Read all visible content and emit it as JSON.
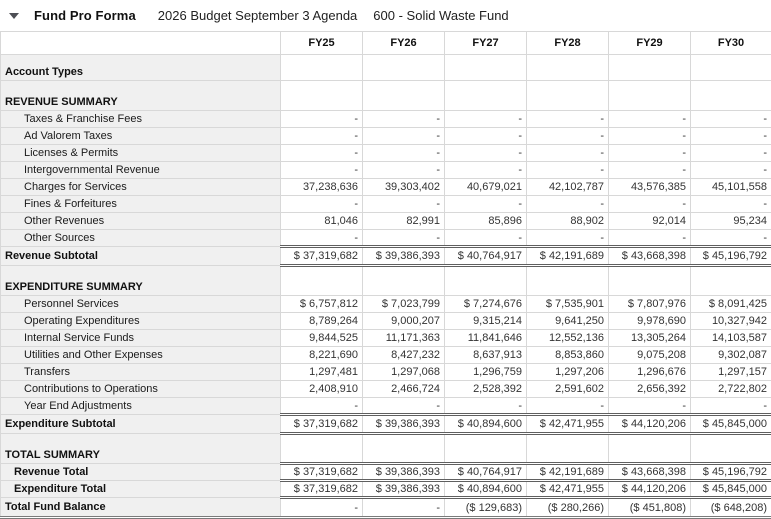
{
  "header": {
    "title": "Fund Pro Forma",
    "subtitle": "2026 Budget September 3 Agenda",
    "fund": "600 - Solid Waste Fund",
    "collapse_icon": "caret-down-icon"
  },
  "colors": {
    "row_label_bg": "#f0f0f0",
    "grid_line": "#d8d8d8",
    "outer_border": "#9e9e9e",
    "accounting_rule": "#5f5f5f",
    "text": "#1a1a1a"
  },
  "table": {
    "columns": [
      "FY25",
      "FY26",
      "FY27",
      "FY28",
      "FY29",
      "FY30"
    ],
    "rows": [
      {
        "type": "spacer",
        "label": "",
        "values": [
          "",
          "",
          "",
          "",
          "",
          ""
        ]
      },
      {
        "type": "acct",
        "label": "Account Types",
        "values": [
          "",
          "",
          "",
          "",
          "",
          ""
        ]
      },
      {
        "type": "spacer",
        "label": "",
        "values": [
          "",
          "",
          "",
          "",
          "",
          ""
        ]
      },
      {
        "type": "section",
        "label": "REVENUE SUMMARY",
        "values": [
          "",
          "",
          "",
          "",
          "",
          ""
        ]
      },
      {
        "type": "item",
        "label": "Taxes & Franchise Fees",
        "values": [
          "-",
          "-",
          "-",
          "-",
          "-",
          "-"
        ]
      },
      {
        "type": "item",
        "label": "Ad Valorem Taxes",
        "values": [
          "-",
          "-",
          "-",
          "-",
          "-",
          "-"
        ]
      },
      {
        "type": "item",
        "label": "Licenses & Permits",
        "values": [
          "-",
          "-",
          "-",
          "-",
          "-",
          "-"
        ]
      },
      {
        "type": "item",
        "label": "Intergovernmental Revenue",
        "values": [
          "-",
          "-",
          "-",
          "-",
          "-",
          "-"
        ]
      },
      {
        "type": "item",
        "label": "Charges for Services",
        "values": [
          "37,238,636",
          "39,303,402",
          "40,679,021",
          "42,102,787",
          "43,576,385",
          "45,101,558"
        ]
      },
      {
        "type": "item",
        "label": "Fines & Forfeitures",
        "values": [
          "-",
          "-",
          "-",
          "-",
          "-",
          "-"
        ]
      },
      {
        "type": "item",
        "label": "Other Revenues",
        "values": [
          "81,046",
          "82,991",
          "85,896",
          "88,902",
          "92,014",
          "95,234"
        ]
      },
      {
        "type": "item",
        "label": "Other Sources",
        "values": [
          "-",
          "-",
          "-",
          "-",
          "-",
          "-"
        ]
      },
      {
        "type": "sub",
        "label": "Revenue Subtotal",
        "values": [
          "$ 37,319,682",
          "$ 39,386,393",
          "$ 40,764,917",
          "$ 42,191,689",
          "$ 43,668,398",
          "$ 45,196,792"
        ]
      },
      {
        "type": "spacer",
        "label": "",
        "values": [
          "",
          "",
          "",
          "",
          "",
          ""
        ]
      },
      {
        "type": "section",
        "label": "EXPENDITURE SUMMARY",
        "values": [
          "",
          "",
          "",
          "",
          "",
          ""
        ]
      },
      {
        "type": "item",
        "label": "Personnel Services",
        "values": [
          "$ 6,757,812",
          "$ 7,023,799",
          "$ 7,274,676",
          "$ 7,535,901",
          "$ 7,807,976",
          "$ 8,091,425"
        ]
      },
      {
        "type": "item",
        "label": "Operating Expenditures",
        "values": [
          "8,789,264",
          "9,000,207",
          "9,315,214",
          "9,641,250",
          "9,978,690",
          "10,327,942"
        ]
      },
      {
        "type": "item",
        "label": "Internal Service Funds",
        "values": [
          "9,844,525",
          "11,171,363",
          "11,841,646",
          "12,552,136",
          "13,305,264",
          "14,103,587"
        ]
      },
      {
        "type": "item",
        "label": "Utilities and Other Expenses",
        "values": [
          "8,221,690",
          "8,427,232",
          "8,637,913",
          "8,853,860",
          "9,075,208",
          "9,302,087"
        ]
      },
      {
        "type": "item",
        "label": "Transfers",
        "values": [
          "1,297,481",
          "1,297,068",
          "1,296,759",
          "1,297,206",
          "1,296,676",
          "1,297,157"
        ]
      },
      {
        "type": "item",
        "label": "Contributions to Operations",
        "values": [
          "2,408,910",
          "2,466,724",
          "2,528,392",
          "2,591,602",
          "2,656,392",
          "2,722,802"
        ]
      },
      {
        "type": "item",
        "label": "Year End Adjustments",
        "values": [
          "-",
          "-",
          "-",
          "-",
          "-",
          "-"
        ]
      },
      {
        "type": "sub",
        "label": "Expenditure Subtotal",
        "values": [
          "$ 37,319,682",
          "$ 39,386,393",
          "$ 40,894,600",
          "$ 42,471,955",
          "$ 44,120,206",
          "$ 45,845,000"
        ]
      },
      {
        "type": "spacer",
        "label": "",
        "values": [
          "",
          "",
          "",
          "",
          "",
          ""
        ]
      },
      {
        "type": "section",
        "label": "TOTAL SUMMARY",
        "values": [
          "",
          "",
          "",
          "",
          "",
          ""
        ]
      },
      {
        "type": "tot",
        "label": "Revenue Total",
        "values": [
          "$ 37,319,682",
          "$ 39,386,393",
          "$ 40,764,917",
          "$ 42,191,689",
          "$ 43,668,398",
          "$ 45,196,792"
        ]
      },
      {
        "type": "tot",
        "label": "Expenditure Total",
        "values": [
          "$ 37,319,682",
          "$ 39,386,393",
          "$ 40,894,600",
          "$ 42,471,955",
          "$ 44,120,206",
          "$ 45,845,000"
        ]
      },
      {
        "type": "grand",
        "label": "Total Fund Balance",
        "values": [
          "-",
          "-",
          "($ 129,683)",
          "($ 280,266)",
          "($ 451,808)",
          "($ 648,208)"
        ]
      }
    ]
  }
}
